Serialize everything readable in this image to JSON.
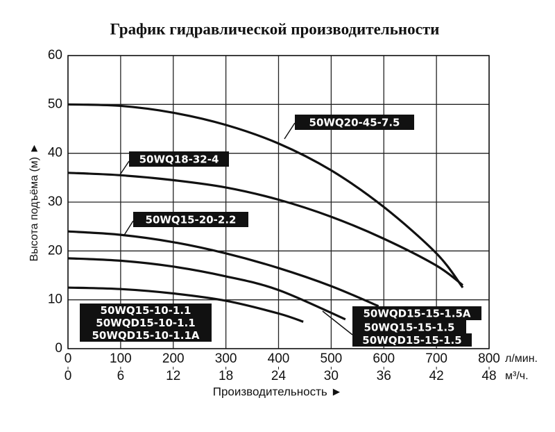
{
  "chart_data": {
    "type": "line",
    "title": "График гидравлической производительности",
    "x_label": "Производительность ►",
    "y_label": "Высота подъёма (м) ►",
    "x_unit": "л/мин.",
    "x2_unit": "м³/ч.",
    "xlim": [
      0,
      800
    ],
    "xticks": [
      0,
      100,
      200,
      300,
      400,
      500,
      600,
      700,
      800
    ],
    "x2lim": [
      0,
      48
    ],
    "x2ticks": [
      0,
      6,
      12,
      18,
      24,
      30,
      36,
      42,
      48
    ],
    "ylim": [
      0,
      60
    ],
    "yticks": [
      0,
      10,
      20,
      30,
      40,
      50,
      60
    ],
    "grid": true,
    "color": "#111111",
    "series": [
      {
        "name": "50WQ20-45-7.5",
        "x": [
          0,
          100,
          200,
          300,
          400,
          500,
          600,
          700,
          750
        ],
        "values": [
          50,
          49.7,
          48.3,
          45.8,
          42,
          36.5,
          29,
          19.5,
          12.5
        ]
      },
      {
        "name": "50WQ18-32-4",
        "x": [
          0,
          100,
          200,
          300,
          400,
          500,
          600,
          700,
          750
        ],
        "values": [
          36,
          35.5,
          34.5,
          33,
          30.5,
          27,
          22.5,
          17,
          13
        ]
      },
      {
        "name": "50WQ15-20-2.2",
        "x": [
          0,
          100,
          200,
          300,
          400,
          500,
          590
        ],
        "values": [
          24,
          23.3,
          21.8,
          19.5,
          16.5,
          12.8,
          8.7
        ]
      },
      {
        "x": [
          0,
          100,
          200,
          300,
          400,
          527
        ],
        "values": [
          18.5,
          18,
          16.8,
          14.8,
          12,
          6
        ]
      },
      {
        "x": [
          0,
          100,
          200,
          300,
          400,
          447
        ],
        "values": [
          12.5,
          12.2,
          11.3,
          9.8,
          7.2,
          5.5
        ]
      }
    ],
    "annotations": [
      "50WQ15-10-1.1",
      "50WQD15-10-1.1",
      "50WQD15-10-1.1A",
      "50WQD15-15-1.5A",
      "50WQ15-15-1.5",
      "50WQD15-15-1.5"
    ]
  }
}
